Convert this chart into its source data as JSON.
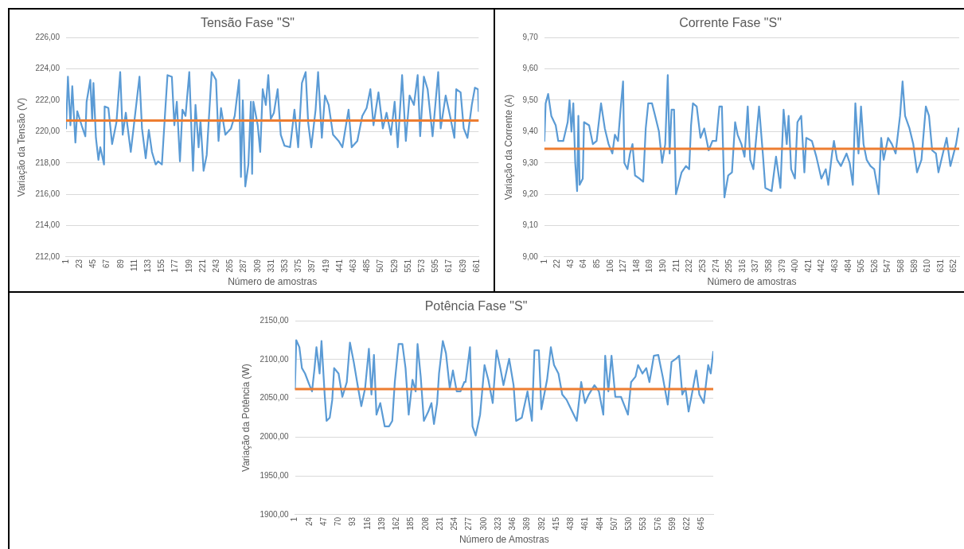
{
  "chart_data": [
    {
      "type": "line",
      "title": "Tensão Fase \"S\"",
      "xlabel": "Número de amostras",
      "ylabel": "Variação da Tensão (V)",
      "color": "#5b9bd5",
      "grid": "y",
      "x": [
        1,
        4,
        8,
        11,
        16,
        19,
        26,
        32,
        34,
        40,
        43,
        45,
        49,
        53,
        56,
        62,
        63,
        69,
        75,
        82,
        88,
        92,
        97,
        105,
        110,
        119,
        123,
        129,
        134,
        139,
        145,
        149,
        155,
        160,
        164,
        171,
        175,
        179,
        184,
        188,
        193,
        199,
        205,
        209,
        214,
        217,
        222,
        227,
        235,
        242,
        246,
        250,
        257,
        266,
        272,
        279,
        282,
        285,
        289,
        294,
        298,
        300,
        302,
        309,
        313,
        317,
        322,
        326,
        330,
        335,
        341,
        346,
        352,
        361,
        368,
        374,
        380,
        386,
        390,
        395,
        402,
        406,
        412,
        417,
        423,
        430,
        439,
        445,
        455,
        460,
        469,
        477,
        484,
        490,
        495,
        503,
        510,
        516,
        523,
        529,
        534,
        541,
        547,
        553,
        560,
        566,
        570,
        576,
        582,
        590,
        599,
        603,
        611,
        618,
        625,
        628,
        635,
        640,
        646,
        653,
        658,
        663,
        664
      ],
      "values": [
        220.2,
        223.5,
        220.4,
        222.9,
        219.3,
        221.3,
        220.4,
        219.7,
        221.9,
        223.3,
        220.7,
        223.1,
        219.6,
        218.2,
        219.0,
        217.9,
        221.6,
        221.5,
        219.2,
        220.6,
        223.8,
        219.8,
        221.2,
        218.7,
        220.4,
        223.5,
        220.2,
        218.3,
        220.1,
        218.7,
        217.9,
        218.1,
        217.9,
        221.1,
        223.6,
        223.5,
        220.4,
        221.9,
        218.1,
        221.4,
        221.0,
        223.8,
        217.5,
        221.7,
        219.0,
        220.7,
        217.5,
        218.5,
        223.8,
        223.3,
        219.4,
        221.5,
        219.8,
        220.2,
        221.0,
        223.3,
        217.1,
        222.0,
        216.5,
        217.9,
        221.9,
        217.3,
        221.9,
        220.4,
        218.7,
        222.7,
        221.7,
        223.6,
        220.8,
        221.2,
        222.7,
        219.8,
        219.1,
        219.0,
        221.4,
        219.0,
        223.1,
        223.8,
        220.6,
        219.0,
        221.4,
        223.8,
        219.6,
        222.3,
        221.7,
        219.8,
        219.4,
        219.0,
        221.4,
        219.0,
        219.4,
        221.0,
        221.5,
        222.7,
        220.4,
        222.5,
        220.2,
        221.2,
        219.8,
        221.9,
        219.0,
        223.6,
        219.4,
        222.3,
        221.7,
        223.6,
        219.7,
        223.5,
        222.7,
        219.7,
        223.8,
        220.2,
        222.3,
        221.0,
        219.6,
        222.7,
        222.5,
        220.2,
        219.6,
        221.7,
        222.8,
        222.7,
        221.3
      ],
      "xlim": [
        1,
        664
      ],
      "xticks": [
        1,
        23,
        45,
        67,
        89,
        111,
        133,
        155,
        177,
        199,
        221,
        243,
        265,
        287,
        309,
        331,
        353,
        375,
        397,
        419,
        441,
        463,
        485,
        507,
        529,
        551,
        573,
        595,
        617,
        639,
        661
      ],
      "ylim": [
        212,
        226
      ],
      "yticks": [
        {
          "value": 212,
          "label": "212,00"
        },
        {
          "value": 214,
          "label": "214,00"
        },
        {
          "value": 216,
          "label": "216,00"
        },
        {
          "value": 218,
          "label": "218,00"
        },
        {
          "value": 220,
          "label": "220,00"
        },
        {
          "value": 222,
          "label": "222,00"
        },
        {
          "value": 224,
          "label": "224,00"
        },
        {
          "value": 226,
          "label": "226,00"
        }
      ],
      "ref_lines": [
        {
          "axis": "y",
          "value": 220.7,
          "color": "#ed7d31"
        }
      ]
    },
    {
      "type": "line",
      "title": "Corrente Fase \"S\"",
      "xlabel": "Número de amostras",
      "ylabel": "Variação da Corrente (A)",
      "color": "#5b9bd5",
      "grid": "y",
      "x": [
        1,
        3,
        7,
        12,
        19,
        23,
        31,
        38,
        41,
        44,
        47,
        50,
        53,
        55,
        57,
        62,
        64,
        72,
        78,
        84,
        91,
        97,
        103,
        109,
        113,
        118,
        122,
        126,
        128,
        133,
        137,
        141,
        145,
        152,
        158,
        162,
        166,
        172,
        177,
        183,
        188,
        193,
        197,
        200,
        203,
        207,
        210,
        214,
        219,
        226,
        231,
        234,
        237,
        243,
        249,
        255,
        262,
        268,
        274,
        279,
        283,
        287,
        293,
        299,
        304,
        308,
        314,
        319,
        324,
        328,
        333,
        342,
        348,
        352,
        362,
        369,
        376,
        381,
        386,
        389,
        393,
        399,
        403,
        409,
        414,
        417,
        426,
        433,
        441,
        448,
        452,
        458,
        461,
        466,
        472,
        481,
        486,
        491,
        495,
        500,
        504,
        508,
        513,
        519,
        525,
        532,
        536,
        540,
        547,
        553,
        559,
        566,
        570,
        574,
        581,
        587,
        593,
        600,
        607,
        612,
        617,
        623,
        627,
        634,
        640,
        646,
        655,
        659
      ],
      "values": [
        9.37,
        9.49,
        9.52,
        9.45,
        9.42,
        9.37,
        9.37,
        9.43,
        9.5,
        9.4,
        9.49,
        9.3,
        9.21,
        9.45,
        9.23,
        9.25,
        9.43,
        9.42,
        9.36,
        9.37,
        9.49,
        9.41,
        9.36,
        9.33,
        9.39,
        9.37,
        9.47,
        9.56,
        9.3,
        9.28,
        9.33,
        9.36,
        9.26,
        9.25,
        9.24,
        9.41,
        9.49,
        9.49,
        9.45,
        9.4,
        9.3,
        9.36,
        9.58,
        9.33,
        9.47,
        9.47,
        9.2,
        9.23,
        9.27,
        9.29,
        9.28,
        9.42,
        9.49,
        9.48,
        9.38,
        9.41,
        9.34,
        9.37,
        9.37,
        9.48,
        9.48,
        9.19,
        9.26,
        9.27,
        9.43,
        9.39,
        9.36,
        9.32,
        9.48,
        9.31,
        9.28,
        9.48,
        9.33,
        9.22,
        9.21,
        9.32,
        9.22,
        9.47,
        9.36,
        9.45,
        9.28,
        9.25,
        9.43,
        9.45,
        9.27,
        9.38,
        9.37,
        9.32,
        9.25,
        9.28,
        9.23,
        9.33,
        9.37,
        9.31,
        9.29,
        9.33,
        9.3,
        9.23,
        9.49,
        9.33,
        9.48,
        9.36,
        9.31,
        9.29,
        9.28,
        9.2,
        9.38,
        9.31,
        9.38,
        9.36,
        9.33,
        9.45,
        9.56,
        9.45,
        9.41,
        9.36,
        9.27,
        9.31,
        9.48,
        9.45,
        9.34,
        9.33,
        9.27,
        9.33,
        9.38,
        9.29,
        9.36,
        9.41
      ],
      "xlim": [
        1,
        660
      ],
      "xticks": [
        1,
        22,
        43,
        64,
        85,
        106,
        127,
        148,
        169,
        190,
        211,
        232,
        253,
        274,
        295,
        316,
        337,
        358,
        379,
        400,
        421,
        442,
        463,
        484,
        505,
        526,
        547,
        568,
        589,
        610,
        631,
        652
      ],
      "ylim": [
        9,
        9.7
      ],
      "yticks": [
        {
          "value": 9,
          "label": "9,00"
        },
        {
          "value": 9.1,
          "label": "9,10"
        },
        {
          "value": 9.2,
          "label": "9,20"
        },
        {
          "value": 9.3,
          "label": "9,30"
        },
        {
          "value": 9.4,
          "label": "9,40"
        },
        {
          "value": 9.5,
          "label": "9,50"
        },
        {
          "value": 9.6,
          "label": "9,60"
        },
        {
          "value": 9.7,
          "label": "9,70"
        }
      ],
      "ref_lines": [
        {
          "axis": "y",
          "value": 9.345,
          "color": "#ed7d31"
        }
      ]
    },
    {
      "type": "line",
      "title": "Potência Fase \"S\"",
      "xlabel": "Número de Amostras",
      "ylabel": "Variação da Potência (W)",
      "color": "#5b9bd5",
      "grid": "y",
      "x": [
        1,
        3,
        8,
        12,
        17,
        23,
        28,
        32,
        35,
        40,
        43,
        48,
        51,
        56,
        60,
        63,
        70,
        76,
        83,
        88,
        94,
        101,
        106,
        112,
        118,
        122,
        126,
        130,
        136,
        143,
        150,
        155,
        159,
        165,
        171,
        176,
        181,
        187,
        192,
        195,
        200,
        205,
        212,
        217,
        221,
        226,
        229,
        235,
        240,
        246,
        251,
        257,
        263,
        269,
        271,
        278,
        282,
        287,
        294,
        301,
        307,
        314,
        320,
        326,
        331,
        340,
        347,
        351,
        360,
        369,
        376,
        380,
        387,
        391,
        400,
        406,
        411,
        418,
        424,
        431,
        438,
        447,
        454,
        460,
        466,
        475,
        482,
        489,
        492,
        497,
        502,
        508,
        517,
        528,
        533,
        540,
        544,
        551,
        557,
        562,
        569,
        576,
        583,
        591,
        597,
        604,
        609,
        614,
        619,
        624,
        630,
        636,
        641,
        648,
        655,
        659,
        663
      ],
      "values": [
        2063,
        2125,
        2116,
        2089,
        2082,
        2069,
        2059,
        2089,
        2116,
        2082,
        2124,
        2055,
        2021,
        2025,
        2048,
        2089,
        2082,
        2052,
        2071,
        2122,
        2097,
        2063,
        2040,
        2063,
        2114,
        2055,
        2106,
        2029,
        2044,
        2014,
        2014,
        2021,
        2071,
        2120,
        2120,
        2089,
        2029,
        2074,
        2059,
        2120,
        2078,
        2021,
        2033,
        2044,
        2017,
        2044,
        2082,
        2124,
        2108,
        2063,
        2086,
        2059,
        2059,
        2071,
        2071,
        2116,
        2014,
        2002,
        2029,
        2093,
        2074,
        2044,
        2112,
        2089,
        2067,
        2101,
        2067,
        2021,
        2025,
        2059,
        2021,
        2112,
        2112,
        2036,
        2074,
        2116,
        2093,
        2082,
        2055,
        2048,
        2036,
        2021,
        2071,
        2044,
        2055,
        2067,
        2059,
        2029,
        2105,
        2059,
        2105,
        2052,
        2052,
        2029,
        2071,
        2078,
        2093,
        2082,
        2089,
        2071,
        2105,
        2106,
        2078,
        2042,
        2097,
        2101,
        2105,
        2055,
        2063,
        2033,
        2059,
        2086,
        2055,
        2044,
        2093,
        2082,
        2110
      ],
      "xlim": [
        1,
        663
      ],
      "xticks": [
        1,
        24,
        47,
        70,
        93,
        116,
        139,
        162,
        185,
        208,
        231,
        254,
        277,
        300,
        323,
        346,
        369,
        392,
        415,
        438,
        461,
        484,
        507,
        530,
        553,
        576,
        599,
        622,
        645
      ],
      "ylim": [
        1900,
        2150
      ],
      "yticks": [
        {
          "value": 1900,
          "label": "1900,00"
        },
        {
          "value": 1950,
          "label": "1950,00"
        },
        {
          "value": 2000,
          "label": "2000,00"
        },
        {
          "value": 2050,
          "label": "2050,00"
        },
        {
          "value": 2100,
          "label": "2100,00"
        },
        {
          "value": 2150,
          "label": "2150,00"
        }
      ],
      "ref_lines": [
        {
          "axis": "y",
          "value": 2062,
          "color": "#ed7d31"
        }
      ]
    }
  ]
}
